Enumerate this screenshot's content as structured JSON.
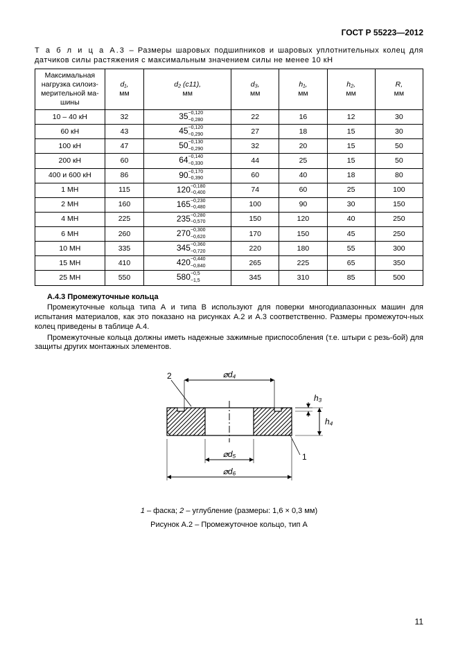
{
  "doc_id": "ГОСТ Р 55223—2012",
  "table_caption_prefix": "Т а б л и ц а  А.3",
  "table_caption_text": " – Размеры шаровых подшипников и шаровых уплотнительных колец для датчиков силы растяжения с максимальным значением силы не менее 10 кН",
  "headers": {
    "load": "Максимальная нагрузка силоиз-мерительной ма-шины",
    "d1": "d₁,",
    "d1u": "мм",
    "d2": "d₂ (c11),",
    "d2u": "мм",
    "d3": "d₃,",
    "d3u": "мм",
    "h1": "h₁,",
    "h1u": "мм",
    "h2": "h₂,",
    "h2u": "мм",
    "R": "R,",
    "Ru": "мм"
  },
  "rows": [
    {
      "load": "10  – 40 кН",
      "d1": "32",
      "d2": {
        "base": "35",
        "sup": "−0,120",
        "sub": "−0,280"
      },
      "d3": "22",
      "h1": "16",
      "h2": "12",
      "R": "30"
    },
    {
      "load": "60 кН",
      "d1": "43",
      "d2": {
        "base": "45",
        "sup": "−0,120",
        "sub": "−0,290"
      },
      "d3": "27",
      "h1": "18",
      "h2": "15",
      "R": "30"
    },
    {
      "load": "100 кН",
      "d1": "47",
      "d2": {
        "base": "50",
        "sup": "−0,130",
        "sub": "−0,290"
      },
      "d3": "32",
      "h1": "20",
      "h2": "15",
      "R": "50"
    },
    {
      "load": "200 кН",
      "d1": "60",
      "d2": {
        "base": "64",
        "sup": "−0,140",
        "sub": "−0,330"
      },
      "d3": "44",
      "h1": "25",
      "h2": "15",
      "R": "50"
    },
    {
      "load": "400  и 600 кН",
      "d1": "86",
      "d2": {
        "base": "90",
        "sup": "−0,170",
        "sub": "−0,390"
      },
      "d3": "60",
      "h1": "40",
      "h2": "18",
      "R": "80"
    },
    {
      "load": "1 МН",
      "d1": "115",
      "d2": {
        "base": "120",
        "sup": "−0,180",
        "sub": "−0,400"
      },
      "d3": "74",
      "h1": "60",
      "h2": "25",
      "R": "100"
    },
    {
      "load": "2 МН",
      "d1": "160",
      "d2": {
        "base": "165",
        "sup": "−0,230",
        "sub": "−0,480"
      },
      "d3": "100",
      "h1": "90",
      "h2": "30",
      "R": "150"
    },
    {
      "load": "4 МН",
      "d1": "225",
      "d2": {
        "base": "235",
        "sup": "−0,280",
        "sub": "−0,570"
      },
      "d3": "150",
      "h1": "120",
      "h2": "40",
      "R": "250"
    },
    {
      "load": "6 МН",
      "d1": "260",
      "d2": {
        "base": "270",
        "sup": "−0,300",
        "sub": "−0,620"
      },
      "d3": "170",
      "h1": "150",
      "h2": "45",
      "R": "250"
    },
    {
      "load": "10 МН",
      "d1": "335",
      "d2": {
        "base": "345",
        "sup": "−0,360",
        "sub": "−0,720"
      },
      "d3": "220",
      "h1": "180",
      "h2": "55",
      "R": "300"
    },
    {
      "load": "15 МН",
      "d1": "410",
      "d2": {
        "base": "420",
        "sup": "−0,440",
        "sub": "−0,840"
      },
      "d3": "265",
      "h1": "225",
      "h2": "65",
      "R": "350"
    },
    {
      "load": "25 МН",
      "d1": "550",
      "d2": {
        "base": "580",
        "sup": "−0,5",
        "sub": "−1,5"
      },
      "d3": "345",
      "h1": "310",
      "h2": "85",
      "R": "500"
    }
  ],
  "section_heading": "А.4.3  Промежуточные кольца",
  "para1": "Промежуточные кольца типа А и типа В используют для поверки многодиапазонных машин для испытания материалов, как это показано на рисунках А.2 и А.3 соответственно. Размеры промежуточ-ных колец приведены в таблице А.4.",
  "para2": "Промежуточные кольца должны иметь надежные зажимные приспособления (т.е. штыри с резь-бой) для защиты других монтажных элементов.",
  "figure": {
    "labels": {
      "n1": "1",
      "n2": "2",
      "d4": "⌀d₄",
      "d5": "⌀d₅",
      "d6": "⌀d₆",
      "h3": "h₃",
      "h4": "h₄"
    },
    "caption": "1  – фаска; 2  – углубление (размеры: 1,6 × 0,3 мм)",
    "title": "Рисунок А.2 – Промежуточное кольцо, тип А"
  },
  "page_number": "11",
  "colors": {
    "text": "#000000",
    "bg": "#ffffff",
    "line": "#000000"
  }
}
